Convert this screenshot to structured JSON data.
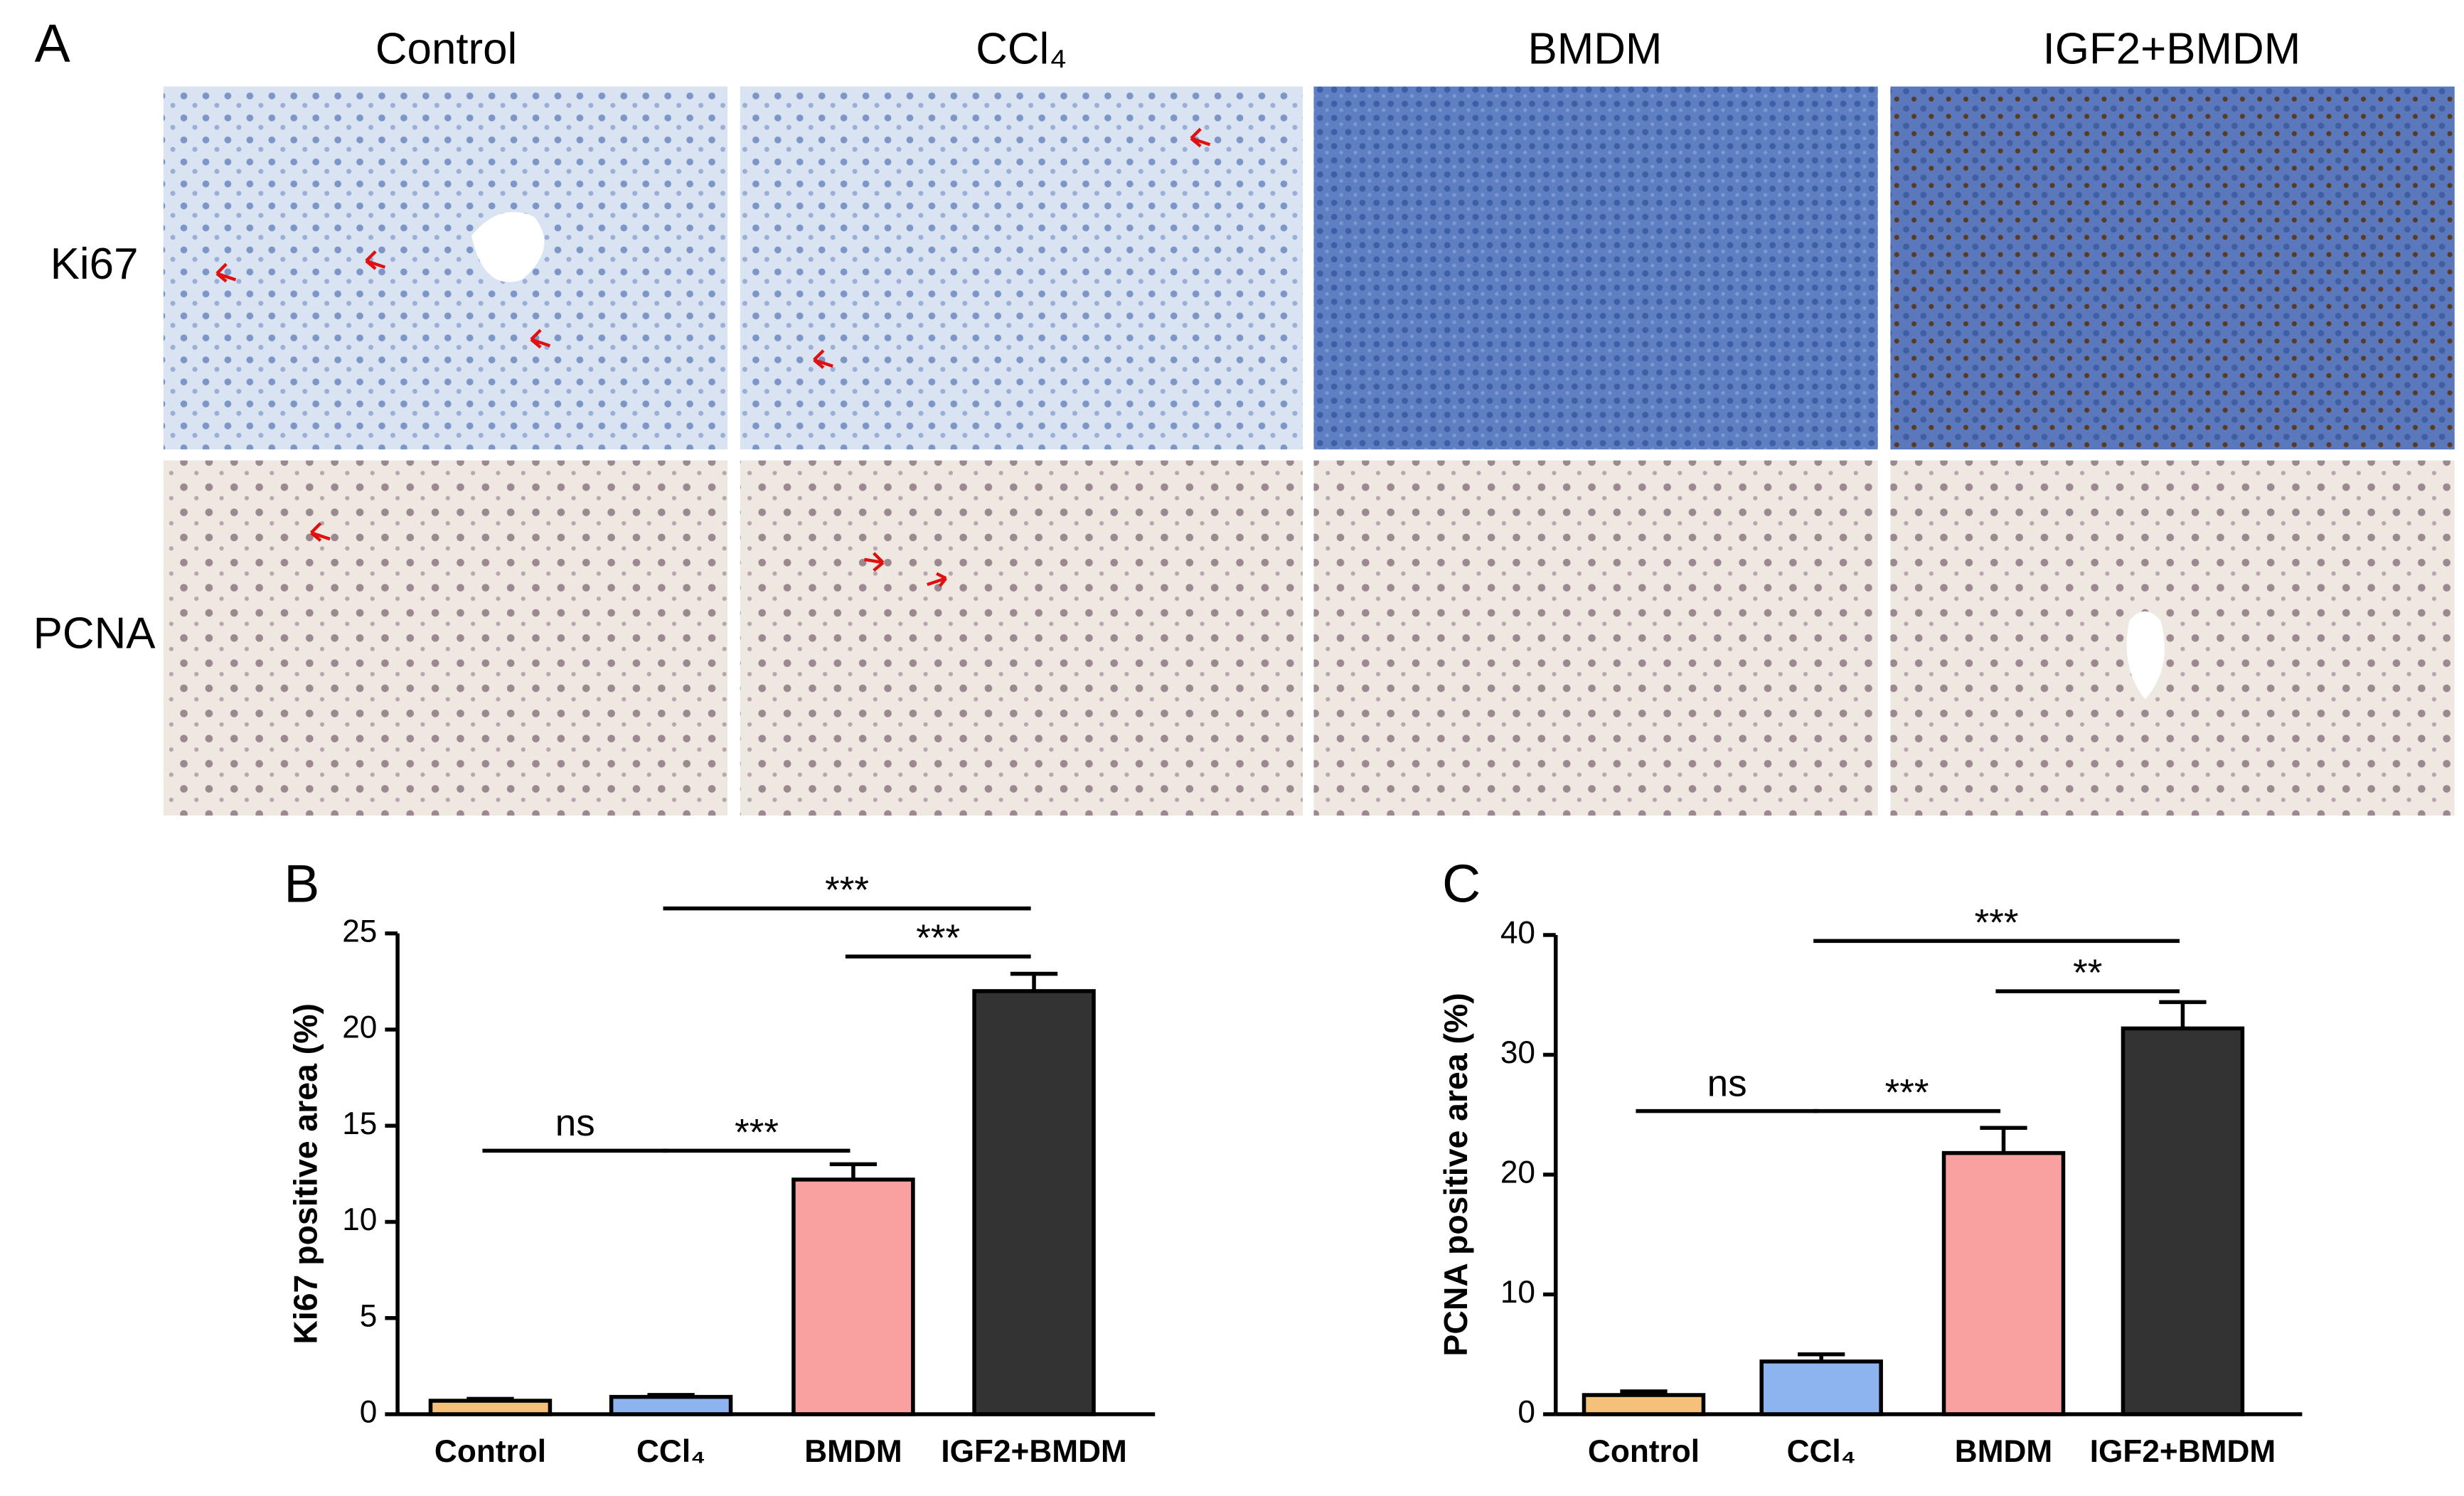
{
  "panel_a": {
    "label": "A",
    "columns": [
      "Control",
      "CCl₄",
      "BMDM",
      "IGF2+BMDM"
    ],
    "rows": [
      "Ki67",
      "PCNA"
    ]
  },
  "chart_data": [
    {
      "type": "bar",
      "panel": "B",
      "y_label": "Ki67 positive area (%)",
      "categories": [
        "Control",
        "CCl₄",
        "BMDM",
        "IGF2+BMDM"
      ],
      "values": [
        0.7,
        0.9,
        12.2,
        22.0
      ],
      "errors": [
        0.1,
        0.1,
        0.8,
        0.9
      ],
      "colors": [
        "#f5c07a",
        "#8db4ef",
        "#f9a0a0",
        "#333333"
      ],
      "ylim": [
        0,
        25
      ],
      "yticks": [
        0,
        5,
        10,
        15,
        20,
        25
      ],
      "comparisons": [
        {
          "from": 0,
          "to": 1,
          "y": 13.7,
          "label": "ns"
        },
        {
          "from": 1,
          "to": 2,
          "y": 13.7,
          "label": "***"
        },
        {
          "from": 2,
          "to": 3,
          "y": 23.8,
          "label": "***"
        },
        {
          "from": 1,
          "to": 3,
          "y": 26.3,
          "label": "***"
        }
      ]
    },
    {
      "type": "bar",
      "panel": "C",
      "y_label": "PCNA positive area (%)",
      "categories": [
        "Control",
        "CCl₄",
        "BMDM",
        "IGF2+BMDM"
      ],
      "values": [
        1.6,
        4.4,
        21.8,
        32.2
      ],
      "errors": [
        0.3,
        0.6,
        2.1,
        2.2
      ],
      "colors": [
        "#f5c07a",
        "#8db4ef",
        "#f9a0a0",
        "#333333"
      ],
      "ylim": [
        0,
        40
      ],
      "yticks": [
        0,
        10,
        20,
        30,
        40
      ],
      "comparisons": [
        {
          "from": 0,
          "to": 1,
          "y": 25.3,
          "label": "ns"
        },
        {
          "from": 1,
          "to": 2,
          "y": 25.3,
          "label": "***"
        },
        {
          "from": 2,
          "to": 3,
          "y": 35.3,
          "label": "**"
        },
        {
          "from": 1,
          "to": 3,
          "y": 39.5,
          "label": "***"
        }
      ]
    }
  ]
}
